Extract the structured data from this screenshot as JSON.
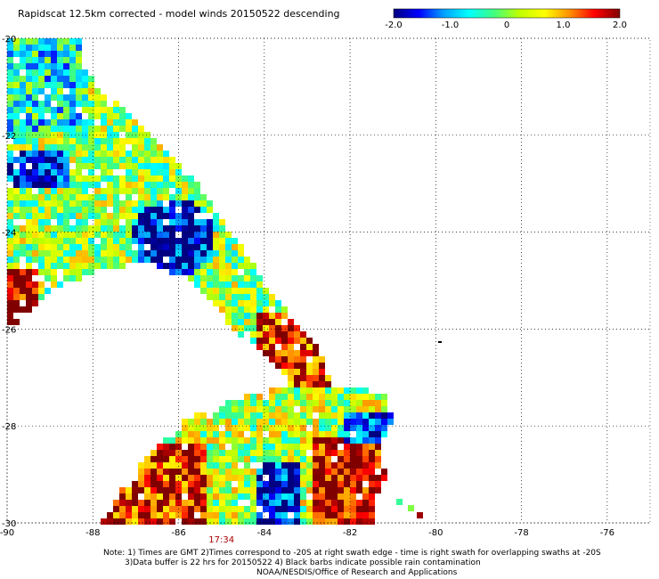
{
  "title": "Rapidscat 12.5km corrected - model winds 20150522 descending",
  "colorbar": {
    "ticks": [
      "-2.0",
      "-1.0",
      "0",
      "1.0",
      "2.0"
    ],
    "values": [
      -2,
      -1,
      0,
      1,
      2
    ],
    "range": [
      -2.0,
      2.0
    ],
    "stops": [
      "#000080",
      "#0000ff",
      "#00a0ff",
      "#00ffff",
      "#40ff80",
      "#c0ff00",
      "#ffff00",
      "#ff9000",
      "#ff0000",
      "#800000"
    ]
  },
  "map": {
    "lon_range": [
      -90,
      -75
    ],
    "lat_range": [
      -20,
      -30
    ],
    "x_ticks": [
      "-90",
      "-88",
      "-86",
      "-84",
      "-82",
      "-80",
      "-78",
      "-76"
    ],
    "x_tick_values": [
      -90,
      -88,
      -86,
      -84,
      -82,
      -80,
      -78,
      -76
    ],
    "y_ticks": [
      "-20",
      "-22",
      "-24",
      "-26",
      "-28",
      "-30"
    ],
    "y_tick_values": [
      -20,
      -22,
      -24,
      -26,
      -28,
      -30
    ],
    "grid": "dotted",
    "time_label": "17:34",
    "time_label_color": "#aa0000",
    "time_lon": -85.0
  },
  "notes": {
    "line1": "Note: 1) Times are GMT 2)Times correspond to -20S at right swath edge - time is right swath for overlapping swaths at -20S",
    "line2": "3)Data buffer is 22 hrs for 20150522 4) Black barbs indicate possible rain contamination",
    "line3": "NOAA/NESDIS/Office of Research and Applications"
  }
}
